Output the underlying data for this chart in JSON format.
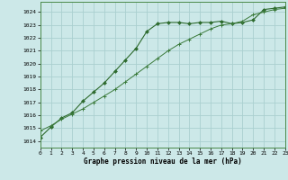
{
  "line1_x": [
    0,
    1,
    2,
    3,
    4,
    5,
    6,
    7,
    8,
    9,
    10,
    11,
    12,
    13,
    14,
    15,
    16,
    17,
    18,
    19,
    20,
    21,
    22,
    23
  ],
  "line1_y": [
    1014.3,
    1015.1,
    1015.8,
    1016.2,
    1017.1,
    1017.8,
    1018.5,
    1019.4,
    1020.3,
    1021.2,
    1022.5,
    1023.1,
    1023.2,
    1023.2,
    1023.1,
    1023.2,
    1023.2,
    1023.3,
    1023.1,
    1023.2,
    1023.4,
    1024.2,
    1024.3,
    1024.4
  ],
  "line2_x": [
    0,
    1,
    2,
    3,
    4,
    5,
    6,
    7,
    8,
    9,
    10,
    11,
    12,
    13,
    14,
    15,
    16,
    17,
    18,
    19,
    20,
    21,
    22,
    23
  ],
  "line2_y": [
    1014.8,
    1015.2,
    1015.7,
    1016.1,
    1016.5,
    1017.0,
    1017.5,
    1018.0,
    1018.6,
    1019.2,
    1019.8,
    1020.4,
    1021.0,
    1021.5,
    1021.9,
    1022.3,
    1022.7,
    1023.0,
    1023.1,
    1023.3,
    1023.8,
    1024.0,
    1024.2,
    1024.3
  ],
  "color1": "#2d6a2d",
  "color2": "#3a7a3a",
  "bg_color": "#cce8e8",
  "grid_color": "#aad0d0",
  "xlabel": "Graphe pression niveau de la mer (hPa)",
  "ylim": [
    1013.5,
    1024.8
  ],
  "yticks": [
    1014,
    1015,
    1016,
    1017,
    1018,
    1019,
    1020,
    1021,
    1022,
    1023,
    1024
  ],
  "xticks": [
    0,
    1,
    2,
    3,
    4,
    5,
    6,
    7,
    8,
    9,
    10,
    11,
    12,
    13,
    14,
    15,
    16,
    17,
    18,
    19,
    20,
    21,
    22,
    23
  ],
  "xlim": [
    0,
    23
  ]
}
